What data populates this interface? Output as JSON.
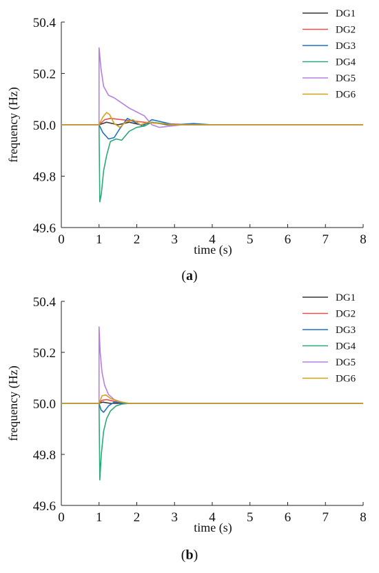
{
  "chart_data": [
    {
      "type": "line",
      "caption": "a",
      "xlabel": "time (s)",
      "ylabel": "frequency (Hz)",
      "xlim": [
        0,
        8
      ],
      "ylim": [
        49.6,
        50.4
      ],
      "xticks": [
        "0",
        "1",
        "2",
        "3",
        "4",
        "5",
        "6",
        "7",
        "8"
      ],
      "yticks": [
        "50.4",
        "50.2",
        "50.0",
        "49.8",
        "49.6"
      ],
      "grid": false,
      "legend_position": "top-right",
      "series": [
        {
          "name": "DG1",
          "color": "#333333",
          "x": [
            0,
            1.0,
            1.2,
            1.5,
            1.8,
            2.1,
            2.4,
            2.8,
            3.2,
            8
          ],
          "y": [
            50.0,
            50.0,
            50.01,
            50.0,
            50.01,
            50.0,
            50.01,
            50.0,
            50.0,
            50.0
          ]
        },
        {
          "name": "DG2",
          "color": "#e8504a",
          "x": [
            0,
            1.0,
            1.15,
            1.3,
            1.6,
            1.9,
            2.2,
            2.6,
            3.0,
            3.4,
            8
          ],
          "y": [
            50.0,
            50.0,
            50.02,
            50.025,
            50.02,
            50.015,
            50.01,
            50.005,
            50.003,
            50.0,
            50.0
          ]
        },
        {
          "name": "DG3",
          "color": "#1f6fc8",
          "x": [
            0,
            1.0,
            1.1,
            1.25,
            1.4,
            1.55,
            1.75,
            1.95,
            2.15,
            2.4,
            2.7,
            3.0,
            3.5,
            4.0,
            8
          ],
          "y": [
            50.0,
            50.0,
            49.97,
            49.945,
            49.95,
            49.985,
            50.025,
            50.01,
            49.995,
            50.02,
            50.01,
            50.0,
            50.005,
            50.0,
            50.0
          ]
        },
        {
          "name": "DG4",
          "color": "#2aa876",
          "x": [
            0,
            1.0,
            1.02,
            1.06,
            1.12,
            1.2,
            1.3,
            1.45,
            1.6,
            1.8,
            2.0,
            2.2,
            2.4,
            2.7,
            3.0,
            3.4,
            3.8,
            4.2,
            8
          ],
          "y": [
            50.0,
            50.0,
            49.7,
            49.73,
            49.82,
            49.88,
            49.935,
            49.945,
            49.94,
            49.975,
            49.99,
            49.995,
            50.01,
            50.005,
            50.0,
            50.0,
            50.0,
            50.0,
            50.0
          ]
        },
        {
          "name": "DG5",
          "color": "#b57fe0",
          "x": [
            0,
            0.999,
            1.0,
            1.05,
            1.12,
            1.25,
            1.4,
            1.6,
            1.8,
            2.0,
            2.2,
            2.4,
            2.6,
            2.9,
            3.2,
            3.6,
            4.0,
            8
          ],
          "y": [
            50.0,
            50.0,
            50.3,
            50.22,
            50.15,
            50.115,
            50.105,
            50.085,
            50.065,
            50.05,
            50.035,
            50.0,
            49.99,
            49.995,
            50.0,
            50.0,
            50.0,
            50.0
          ]
        },
        {
          "name": "DG6",
          "color": "#d4a017",
          "x": [
            0,
            1.0,
            1.1,
            1.2,
            1.28,
            1.4,
            1.55,
            1.7,
            1.9,
            2.1,
            2.3,
            2.6,
            3.0,
            8
          ],
          "y": [
            50.0,
            50.0,
            50.03,
            50.048,
            50.04,
            50.005,
            49.99,
            50.01,
            50.02,
            50.0,
            50.01,
            50.005,
            50.0,
            50.0
          ]
        }
      ]
    },
    {
      "type": "line",
      "caption": "b",
      "xlabel": "time (s)",
      "ylabel": "frequency (Hz)",
      "xlim": [
        0,
        8
      ],
      "ylim": [
        49.6,
        50.4
      ],
      "xticks": [
        "0",
        "1",
        "2",
        "3",
        "4",
        "5",
        "6",
        "7",
        "8"
      ],
      "yticks": [
        "50.4",
        "50.2",
        "50.0",
        "49.8",
        "49.6"
      ],
      "grid": false,
      "legend_position": "top-right",
      "series": [
        {
          "name": "DG1",
          "color": "#333333",
          "x": [
            0,
            1.0,
            1.1,
            1.3,
            1.6,
            8
          ],
          "y": [
            50.0,
            50.0,
            50.005,
            50.0,
            50.0,
            50.0
          ]
        },
        {
          "name": "DG2",
          "color": "#e8504a",
          "x": [
            0,
            1.0,
            1.08,
            1.2,
            1.4,
            1.7,
            8
          ],
          "y": [
            50.0,
            50.0,
            50.012,
            50.015,
            50.008,
            50.0,
            50.0
          ]
        },
        {
          "name": "DG3",
          "color": "#1f6fc8",
          "x": [
            0,
            1.0,
            1.05,
            1.12,
            1.25,
            1.4,
            1.7,
            8
          ],
          "y": [
            50.0,
            50.0,
            49.975,
            49.965,
            49.99,
            50.005,
            50.0,
            50.0
          ]
        },
        {
          "name": "DG4",
          "color": "#2aa876",
          "x": [
            0,
            1.0,
            1.02,
            1.06,
            1.12,
            1.2,
            1.3,
            1.45,
            1.6,
            1.8,
            2.0,
            2.5,
            8
          ],
          "y": [
            50.0,
            50.0,
            49.7,
            49.8,
            49.89,
            49.94,
            49.97,
            49.99,
            49.997,
            50.0,
            50.0,
            50.0,
            50.0
          ]
        },
        {
          "name": "DG5",
          "color": "#b57fe0",
          "x": [
            0,
            0.999,
            1.0,
            1.03,
            1.08,
            1.15,
            1.25,
            1.4,
            1.6,
            1.8,
            2.0,
            2.5,
            8
          ],
          "y": [
            50.0,
            50.0,
            50.3,
            50.2,
            50.12,
            50.07,
            50.035,
            50.015,
            50.005,
            50.0,
            50.0,
            50.0,
            50.0
          ]
        },
        {
          "name": "DG6",
          "color": "#d4a017",
          "x": [
            0,
            1.0,
            1.08,
            1.18,
            1.3,
            1.5,
            1.8,
            8
          ],
          "y": [
            50.0,
            50.0,
            50.03,
            50.033,
            50.02,
            50.008,
            50.0,
            50.0
          ]
        }
      ]
    }
  ]
}
